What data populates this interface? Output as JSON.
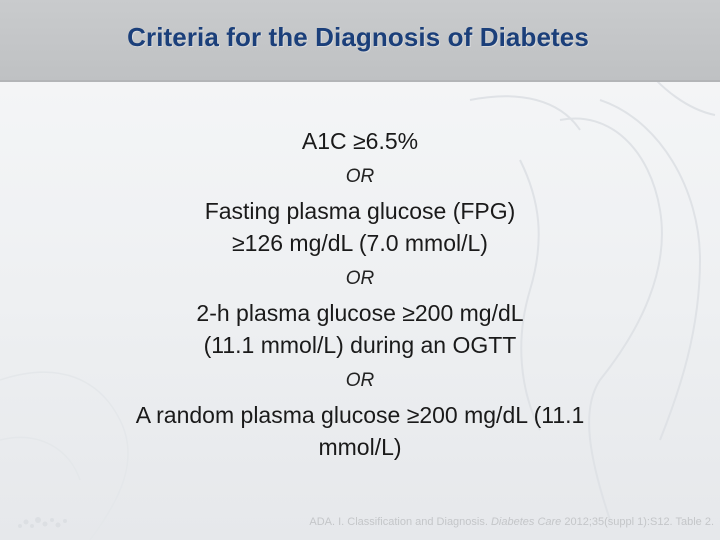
{
  "slide": {
    "title": "Criteria for the Diagnosis of Diabetes",
    "criteria": [
      {
        "lines": [
          "A1C ≥6.5%"
        ]
      },
      {
        "lines": [
          "Fasting plasma glucose (FPG)",
          "≥126 mg/dL (7.0 mmol/L)"
        ]
      },
      {
        "lines": [
          "2-h plasma glucose ≥200 mg/dL",
          "(11.1 mmol/L) during an OGTT"
        ]
      },
      {
        "lines": [
          "A random plasma glucose ≥200 mg/dL (11.1",
          "mmol/L)"
        ]
      }
    ],
    "separator": "OR",
    "citation": {
      "pre": "ADA. I. Classification and Diagnosis. ",
      "journal": "Diabetes Care",
      "post": " 2012;35(suppl 1):S12. Table 2."
    }
  },
  "colors": {
    "title": "#1b3f7a",
    "title_bar": "#c4c6c8",
    "body_text": "#1a1a1a",
    "background": "#f0f1f3"
  }
}
